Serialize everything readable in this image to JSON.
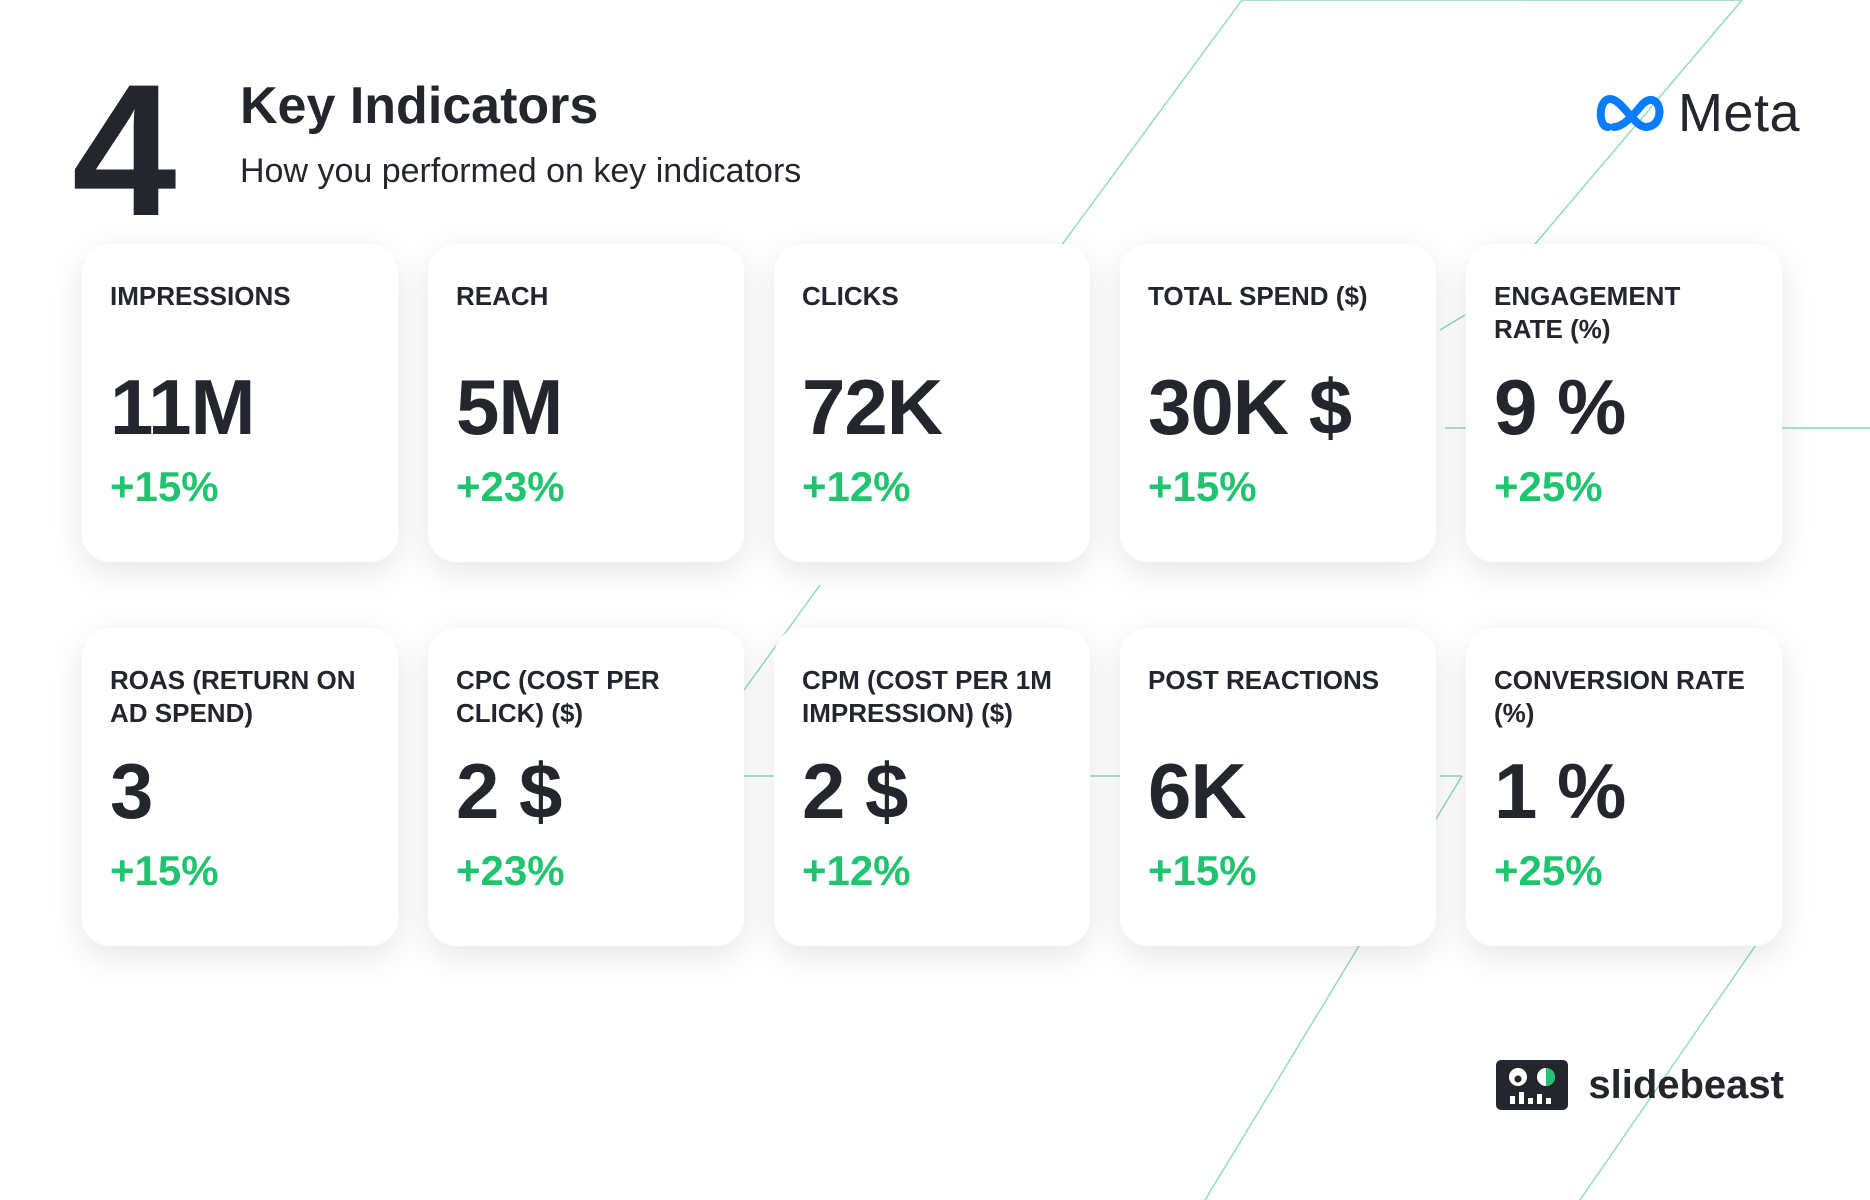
{
  "header": {
    "section_number": "4",
    "title": "Key Indicators",
    "subtitle": "How you performed on key indicators"
  },
  "brand": {
    "logo_text": "Meta",
    "logo_icon": "meta-infinity-icon",
    "logo_color": "#0a7cff"
  },
  "footer": {
    "brand_text": "slidebeast",
    "brand_icon": "slidebeast-robot-icon"
  },
  "colors": {
    "positive": "#1fc46e",
    "text": "#23262d",
    "accent_line": "#2fbf71"
  },
  "metrics": [
    {
      "label": "IMPRESSIONS",
      "value": "11M",
      "change": "+15%"
    },
    {
      "label": "REACH",
      "value": "5M",
      "change": "+23%"
    },
    {
      "label": "CLICKS",
      "value": "72K",
      "change": "+12%"
    },
    {
      "label": "TOTAL SPEND ($)",
      "value": "30K $",
      "change": "+15%"
    },
    {
      "label": "ENGAGEMENT RATE (%)",
      "value": "9 %",
      "change": "+25%"
    },
    {
      "label": "ROAS (RETURN ON AD SPEND)",
      "value": "3",
      "change": "+15%"
    },
    {
      "label": "CPC (COST PER CLICK) ($)",
      "value": "2 $",
      "change": "+23%"
    },
    {
      "label": "CPM (COST PER 1M IMPRESSION) ($)",
      "value": "2 $",
      "change": "+12%"
    },
    {
      "label": "POST REACTIONS",
      "value": "6K",
      "change": "+15%"
    },
    {
      "label": "CONVERSION RATE (%)",
      "value": "1 %",
      "change": "+25%"
    }
  ]
}
